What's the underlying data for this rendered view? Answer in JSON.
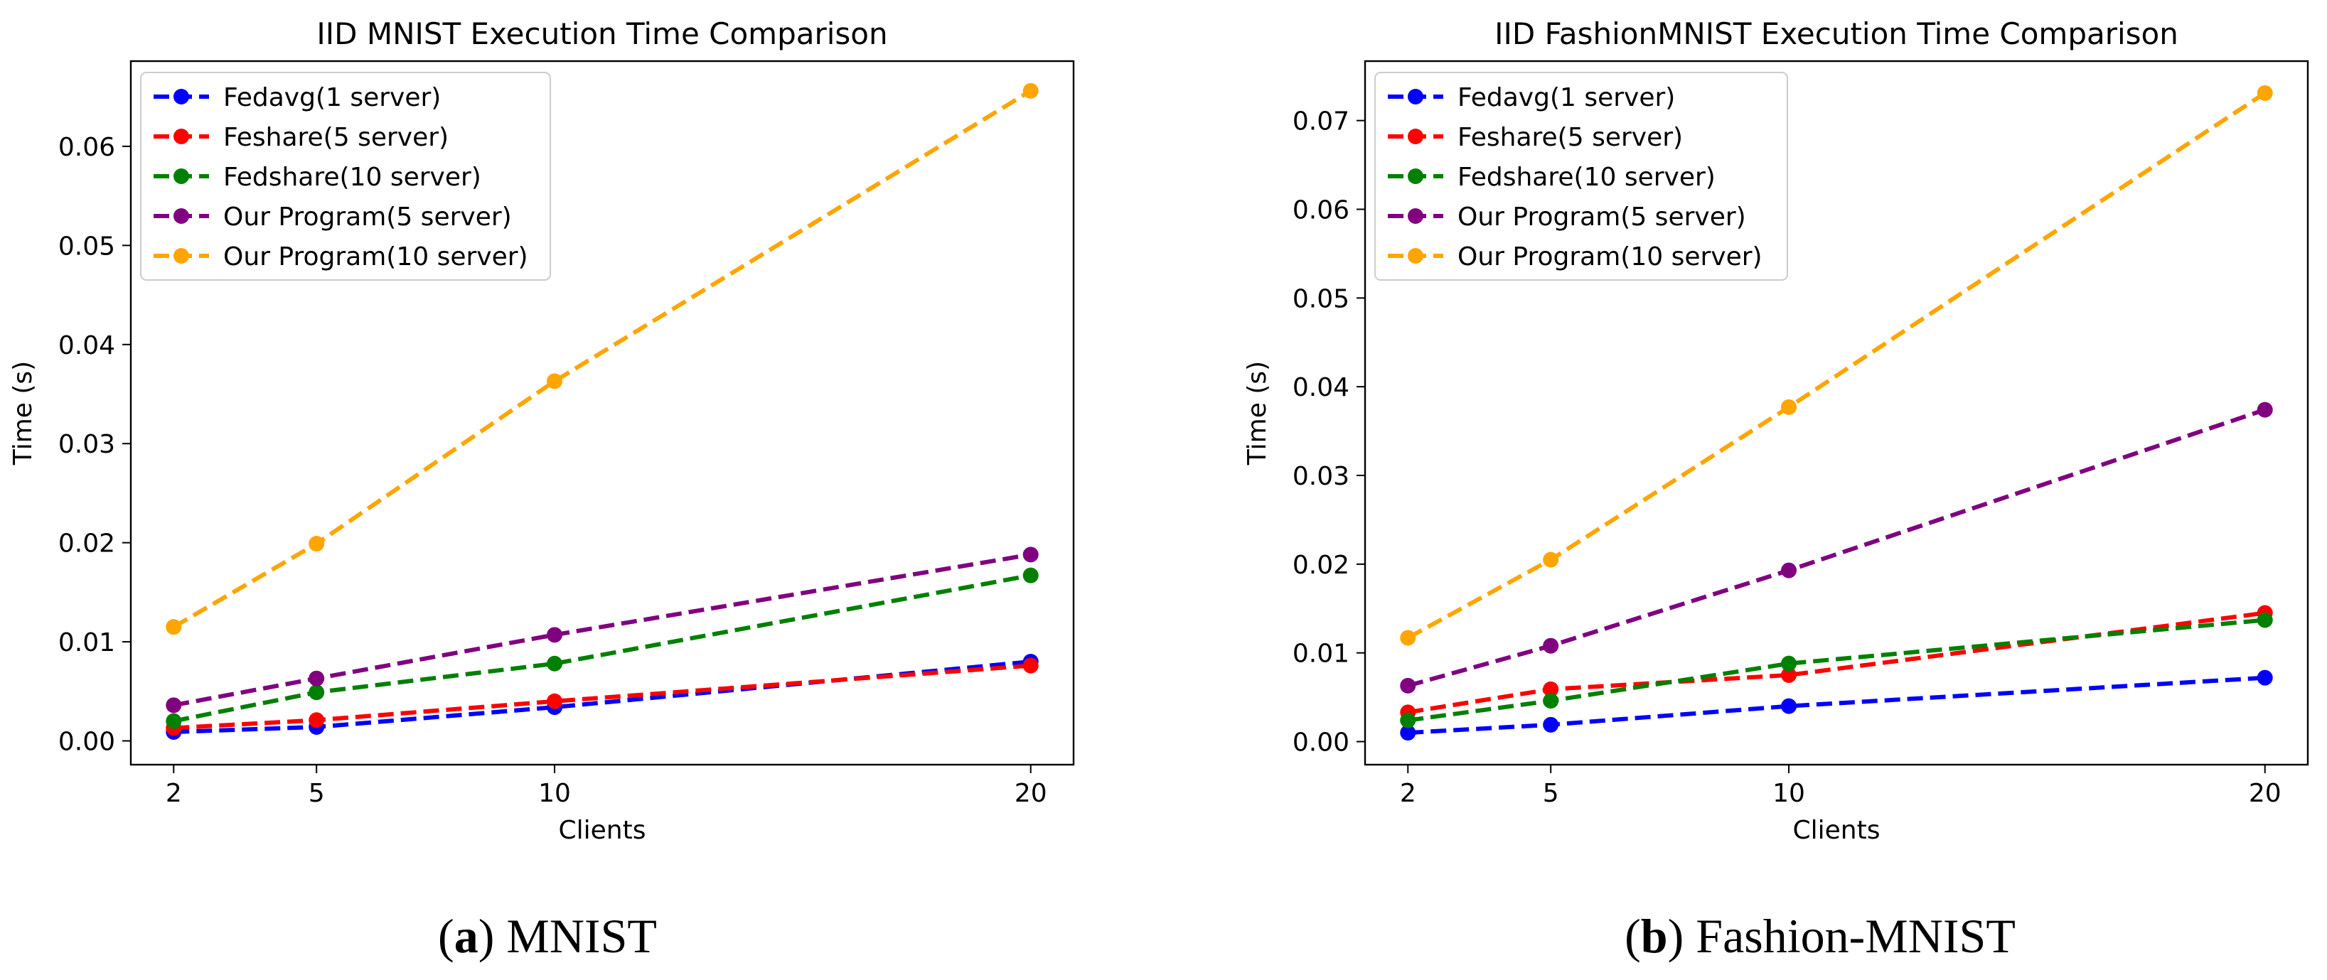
{
  "figure": {
    "caption_a": {
      "letter": "a",
      "text": "MNIST"
    },
    "caption_b": {
      "letter": "b",
      "text": "Fashion-MNIST"
    }
  },
  "chart_data": [
    {
      "type": "line",
      "title": "IID MNIST Execution Time Comparison",
      "xlabel": "Clients",
      "ylabel": "Time (s)",
      "x": [
        2,
        5,
        10,
        20
      ],
      "xticks": [
        "2",
        "5",
        "10",
        "20"
      ],
      "xlim": [
        1.1,
        20.9
      ],
      "ylim": [
        -0.0024,
        0.0686
      ],
      "yticks": [
        "0.00",
        "0.01",
        "0.02",
        "0.03",
        "0.04",
        "0.05",
        "0.06"
      ],
      "ytick_values": [
        0,
        0.01,
        0.02,
        0.03,
        0.04,
        0.05,
        0.06
      ],
      "grid": false,
      "legend_position": "upper-left",
      "series": [
        {
          "name": "Fedavg(1 server)",
          "color": "#0000ff",
          "values": [
            0.0009,
            0.0014,
            0.0034,
            0.008
          ]
        },
        {
          "name": "Feshare(5 server)",
          "color": "#ff0000",
          "values": [
            0.0013,
            0.0021,
            0.004,
            0.0076
          ]
        },
        {
          "name": "Fedshare(10 server)",
          "color": "#008000",
          "values": [
            0.002,
            0.0049,
            0.0078,
            0.0167
          ]
        },
        {
          "name": "Our Program(5 server)",
          "color": "#800080",
          "values": [
            0.0036,
            0.0063,
            0.0107,
            0.0188
          ]
        },
        {
          "name": "Our Program(10 server)",
          "color": "#ffa500",
          "values": [
            0.0115,
            0.0199,
            0.0363,
            0.0656
          ]
        }
      ]
    },
    {
      "type": "line",
      "title": "IID FashionMNIST Execution Time Comparison",
      "xlabel": "Clients",
      "ylabel": "Time (s)",
      "x": [
        2,
        5,
        10,
        20
      ],
      "xticks": [
        "2",
        "5",
        "10",
        "20"
      ],
      "xlim": [
        1.1,
        20.9
      ],
      "ylim": [
        -0.0026,
        0.0767
      ],
      "yticks": [
        "0.00",
        "0.01",
        "0.02",
        "0.03",
        "0.04",
        "0.05",
        "0.06",
        "0.07"
      ],
      "ytick_values": [
        0,
        0.01,
        0.02,
        0.03,
        0.04,
        0.05,
        0.06,
        0.07
      ],
      "grid": false,
      "legend_position": "upper-left",
      "series": [
        {
          "name": "Fedavg(1 server)",
          "color": "#0000ff",
          "values": [
            0.001,
            0.0019,
            0.004,
            0.0072
          ]
        },
        {
          "name": "Feshare(5 server)",
          "color": "#ff0000",
          "values": [
            0.0033,
            0.0059,
            0.0075,
            0.0145
          ]
        },
        {
          "name": "Fedshare(10 server)",
          "color": "#008000",
          "values": [
            0.0024,
            0.0046,
            0.0088,
            0.0137
          ]
        },
        {
          "name": "Our Program(5 server)",
          "color": "#800080",
          "values": [
            0.0063,
            0.0108,
            0.0193,
            0.0374
          ]
        },
        {
          "name": "Our Program(10 server)",
          "color": "#ffa500",
          "values": [
            0.0117,
            0.0205,
            0.0377,
            0.0731
          ]
        }
      ]
    }
  ]
}
